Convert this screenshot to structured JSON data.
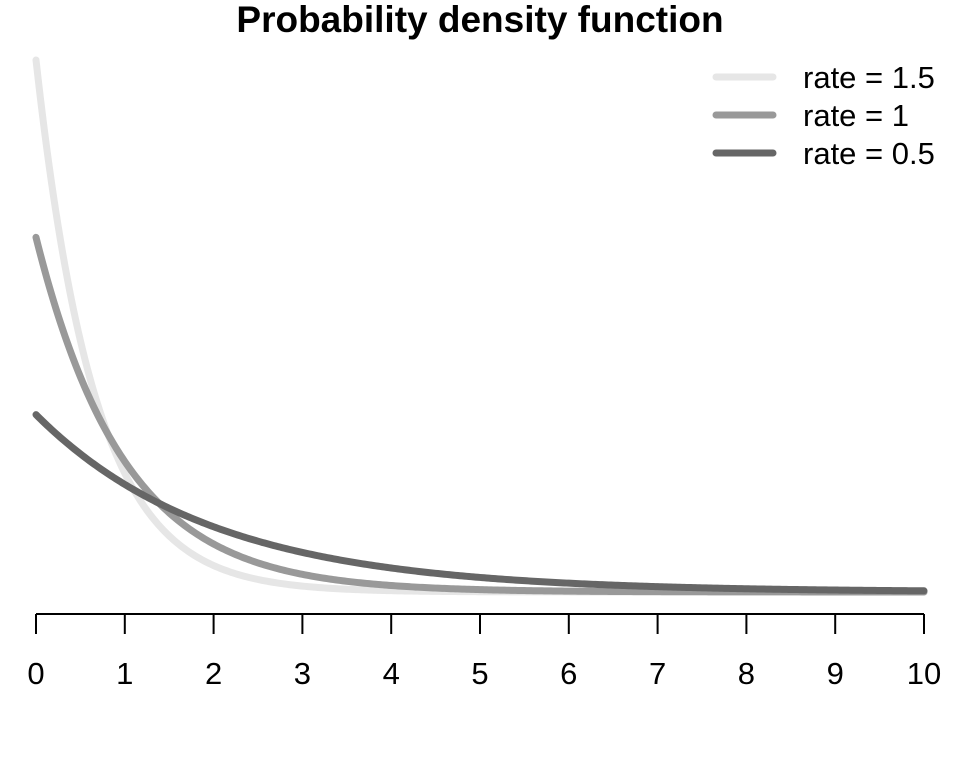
{
  "chart_data": {
    "type": "line",
    "title": "Probability density function",
    "xlabel": "",
    "ylabel": "",
    "xlim": [
      0,
      10
    ],
    "ylim": [
      0,
      1.5
    ],
    "x_ticks": [
      0,
      1,
      2,
      3,
      4,
      5,
      6,
      7,
      8,
      9,
      10
    ],
    "x_tick_labels": [
      "0",
      "1",
      "2",
      "3",
      "4",
      "5",
      "6",
      "7",
      "8",
      "9",
      "10"
    ],
    "y_axis_shown": false,
    "grid": false,
    "legend_position": "top-right",
    "series": [
      {
        "name": "rate = 1.5",
        "rate": 1.5,
        "color": "#e6e6e6"
      },
      {
        "name": "rate = 1",
        "rate": 1,
        "color": "#999999"
      },
      {
        "name": "rate = 0.5",
        "rate": 0.5,
        "color": "#666666"
      }
    ]
  }
}
